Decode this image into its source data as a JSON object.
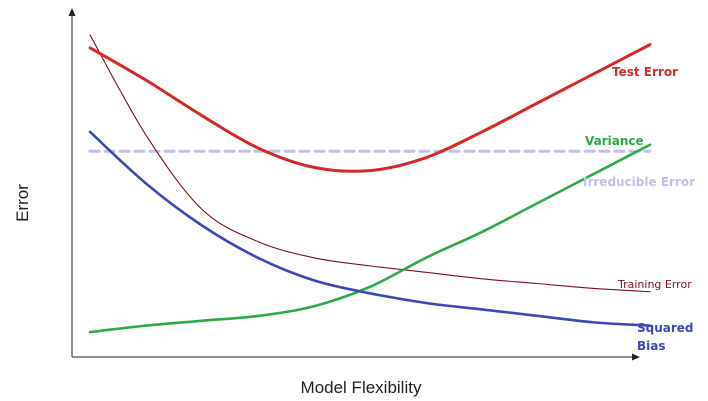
{
  "chart_data": {
    "type": "line",
    "title": "",
    "xlabel": "Model Flexibility",
    "ylabel": "Error",
    "xlim": [
      0,
      1
    ],
    "ylim": [
      0,
      1
    ],
    "grid": false,
    "legend": "none (curves labeled directly)",
    "series": [
      {
        "name": "Test Error",
        "color": "#d42a2a",
        "x": [
          0.0,
          0.1,
          0.2,
          0.3,
          0.4,
          0.5,
          0.6,
          0.7,
          0.8,
          0.9,
          1.0
        ],
        "y": [
          0.92,
          0.82,
          0.71,
          0.61,
          0.55,
          0.54,
          0.58,
          0.66,
          0.75,
          0.84,
          0.93
        ]
      },
      {
        "name": "Variance",
        "color": "#2faa4a",
        "x": [
          0.0,
          0.1,
          0.2,
          0.3,
          0.4,
          0.5,
          0.6,
          0.7,
          0.8,
          0.9,
          1.0
        ],
        "y": [
          0.04,
          0.06,
          0.075,
          0.09,
          0.12,
          0.18,
          0.27,
          0.35,
          0.44,
          0.53,
          0.62
        ]
      },
      {
        "name": "Irreducible Error",
        "color": "#c0c0e8",
        "style": "dashed",
        "x": [
          0.0,
          1.0
        ],
        "y": [
          0.6,
          0.6
        ]
      },
      {
        "name": "Training Error",
        "color": "#7a1020",
        "x": [
          0.0,
          0.1,
          0.2,
          0.3,
          0.4,
          0.5,
          0.6,
          0.7,
          0.8,
          0.9,
          1.0
        ],
        "y": [
          0.96,
          0.65,
          0.42,
          0.32,
          0.27,
          0.245,
          0.225,
          0.205,
          0.19,
          0.175,
          0.165
        ]
      },
      {
        "name": "Squared Bias",
        "color": "#3a49b8",
        "x": [
          0.0,
          0.1,
          0.2,
          0.3,
          0.4,
          0.5,
          0.6,
          0.7,
          0.8,
          0.9,
          1.0
        ],
        "y": [
          0.66,
          0.5,
          0.37,
          0.27,
          0.2,
          0.16,
          0.13,
          0.11,
          0.09,
          0.07,
          0.06
        ]
      }
    ],
    "labels": [
      {
        "text": "Test Error",
        "series": "Test Error"
      },
      {
        "text": "Variance",
        "series": "Variance"
      },
      {
        "text": "Irreducible Error",
        "series": "Irreducible Error"
      },
      {
        "text": "Training Error",
        "series": "Training Error"
      },
      {
        "text": "Squared",
        "series": "Squared Bias"
      },
      {
        "text": "Bias",
        "series": "Squared Bias"
      }
    ]
  }
}
